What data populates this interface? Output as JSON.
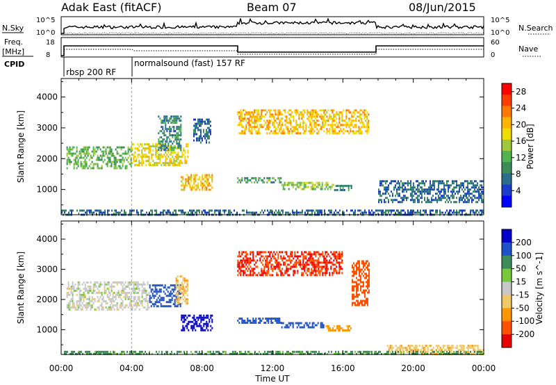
{
  "header": {
    "station": "Adak East (fitACF)",
    "beam": "Beam 07",
    "date": "08/Jun/2015"
  },
  "top_panels": {
    "nsky_label": "N.Sky",
    "nsky_ticks": [
      "10^5",
      "10^0"
    ],
    "nsearch_label": "N.Search",
    "nsearch_ticks": [
      "10^5",
      "10^0"
    ],
    "freq_label": "Freq.",
    "freq_unit": "[MHz]",
    "freq_ticks": [
      "18",
      "8"
    ],
    "nave_label": "Nave",
    "nave_ticks": [
      "60",
      "0"
    ],
    "cpid_label": "CPID",
    "cpid_segments": [
      "rbsp 200 RF",
      "normalsound (fast) 157 RF"
    ]
  },
  "chart_data": [
    {
      "type": "heatmap",
      "name_key": "power",
      "title": "",
      "xlabel": "",
      "ylabel": "Slant Range [km]",
      "xlim": [
        0,
        24
      ],
      "ylim": [
        180,
        4600
      ],
      "x_ticks": [
        "00:00",
        "04:00",
        "08:00",
        "12:00",
        "16:00",
        "20:00",
        "00:00"
      ],
      "y_ticks": [
        1000,
        2000,
        3000,
        4000
      ],
      "colorbar": {
        "label": "Power [dB]",
        "ticks": [
          "4",
          "8",
          "12",
          "16",
          "20",
          "24",
          "28"
        ],
        "range": [
          0,
          30
        ],
        "colors": [
          "#0000ff",
          "#1a3cc8",
          "#2b6e8c",
          "#3c8c5a",
          "#50b450",
          "#a0c83c",
          "#f0dc00",
          "#ffb400",
          "#ff7800",
          "#ff3c00",
          "#ff0000"
        ]
      },
      "echo_regions": [
        {
          "t": [
            0.3,
            4.0
          ],
          "r": [
            1700,
            2400
          ],
          "value": 12
        },
        {
          "t": [
            4.0,
            7.2
          ],
          "r": [
            1800,
            2500
          ],
          "value": 18
        },
        {
          "t": [
            5.5,
            6.8
          ],
          "r": [
            2300,
            3400
          ],
          "value": 8
        },
        {
          "t": [
            6.8,
            8.6
          ],
          "r": [
            1000,
            1500
          ],
          "value": 20
        },
        {
          "t": [
            7.5,
            8.5
          ],
          "r": [
            2500,
            3300
          ],
          "value": 6
        },
        {
          "t": [
            10.0,
            12.5
          ],
          "r": [
            1200,
            1400
          ],
          "value": 10
        },
        {
          "t": [
            12.5,
            15.5
          ],
          "r": [
            1000,
            1250
          ],
          "value": 14
        },
        {
          "t": [
            15.5,
            16.5
          ],
          "r": [
            950,
            1150
          ],
          "value": 8
        },
        {
          "t": [
            10.0,
            17.5
          ],
          "r": [
            2800,
            3600
          ],
          "value": 20
        },
        {
          "t": [
            18.0,
            24.0
          ],
          "r": [
            600,
            1300
          ],
          "value": 6
        },
        {
          "t": [
            0.0,
            24.0
          ],
          "r": [
            180,
            350
          ],
          "value": 6
        }
      ]
    },
    {
      "type": "heatmap",
      "name_key": "velocity",
      "title": "",
      "xlabel": "Time UT",
      "ylabel": "Slant Range [km]",
      "xlim": [
        0,
        24
      ],
      "ylim": [
        180,
        4600
      ],
      "x_ticks": [
        "00:00",
        "04:00",
        "08:00",
        "12:00",
        "16:00",
        "20:00",
        "00:00"
      ],
      "y_ticks": [
        1000,
        2000,
        3000,
        4000
      ],
      "colorbar": {
        "label": "Velocity [m s^-1]",
        "ticks": [
          "200",
          "100",
          "50",
          "15",
          "-15",
          "-50",
          "-100",
          "-200"
        ],
        "colors": [
          "#0000c8",
          "#1e50c8",
          "#3c8c5a",
          "#78c83c",
          "#c8c8c8",
          "#f0c864",
          "#ff9600",
          "#ff5000",
          "#e60000"
        ]
      },
      "echo_regions": [
        {
          "t": [
            0.3,
            5.0
          ],
          "r": [
            1700,
            2600
          ],
          "vel": 0
        },
        {
          "t": [
            5.0,
            6.8
          ],
          "r": [
            1800,
            2500
          ],
          "vel": 150
        },
        {
          "t": [
            6.5,
            7.2
          ],
          "r": [
            1900,
            2800
          ],
          "vel": -40
        },
        {
          "t": [
            6.8,
            8.6
          ],
          "r": [
            1000,
            1500
          ],
          "vel": 220
        },
        {
          "t": [
            10.0,
            12.5
          ],
          "r": [
            1200,
            1400
          ],
          "vel": 150
        },
        {
          "t": [
            12.5,
            15.0
          ],
          "r": [
            1050,
            1250
          ],
          "vel": 180
        },
        {
          "t": [
            15.0,
            16.5
          ],
          "r": [
            950,
            1150
          ],
          "vel": -60
        },
        {
          "t": [
            16.5,
            17.5
          ],
          "r": [
            1800,
            3300
          ],
          "vel": -150
        },
        {
          "t": [
            10.0,
            16.0
          ],
          "r": [
            2800,
            3600
          ],
          "vel": -200
        },
        {
          "t": [
            18.5,
            24.0
          ],
          "r": [
            180,
            500
          ],
          "vel": -40
        },
        {
          "t": [
            0.0,
            24.0
          ],
          "r": [
            180,
            300
          ],
          "vel": 60
        }
      ]
    }
  ],
  "colors": {
    "axis": "#000000",
    "separator": "#999999",
    "background": "#ffffff"
  }
}
